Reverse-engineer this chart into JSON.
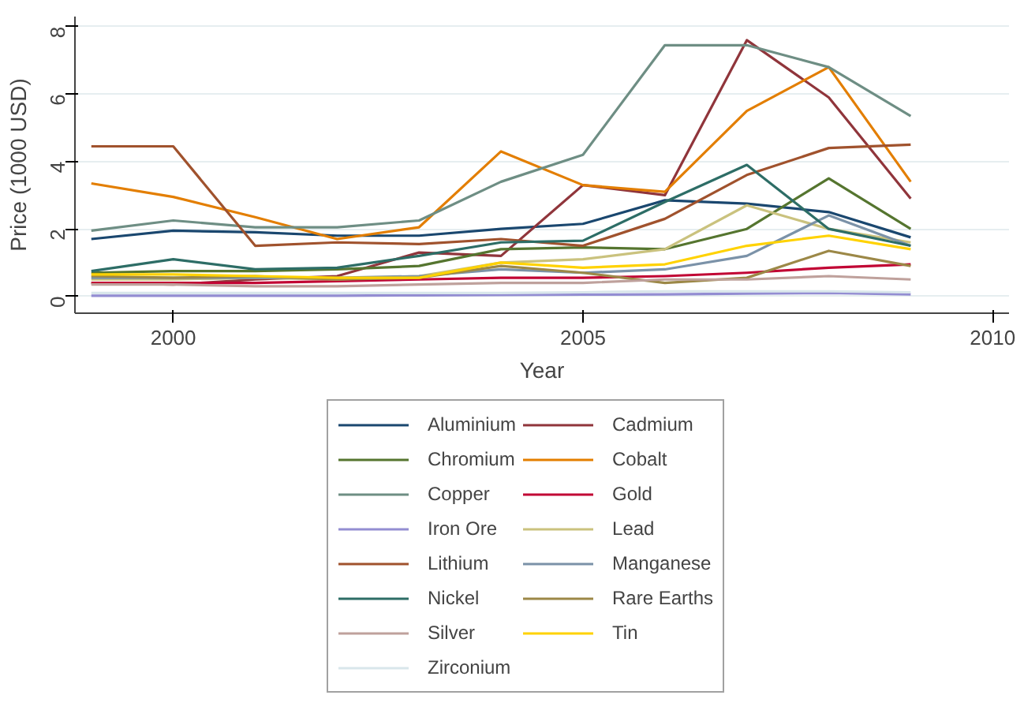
{
  "chart_data": {
    "type": "line",
    "xlabel": "Year",
    "ylabel": "Price (1000 USD)",
    "x": [
      1999,
      2000,
      2001,
      2002,
      2003,
      2004,
      2005,
      2006,
      2007,
      2008,
      2009
    ],
    "xlim": [
      1998.8,
      2010.2
    ],
    "xticks": [
      2000,
      2005,
      2010
    ],
    "ylim": [
      -0.5,
      8.3
    ],
    "yticks": [
      0,
      2,
      4,
      6,
      8
    ],
    "grid": "y",
    "legend": "bottom",
    "line_style": "solid",
    "marker": "none",
    "series": [
      {
        "name": "Aluminium",
        "color": "#1a476f",
        "values": [
          1.7,
          1.95,
          1.9,
          1.8,
          1.8,
          2.0,
          2.15,
          2.85,
          2.75,
          2.5,
          1.75
        ]
      },
      {
        "name": "Cadmium",
        "color": "#90353b",
        "values": [
          0.4,
          0.35,
          0.5,
          0.6,
          1.3,
          1.2,
          3.3,
          3.0,
          7.6,
          5.9,
          2.9
        ]
      },
      {
        "name": "Chromium",
        "color": "#55752f",
        "values": [
          0.7,
          0.75,
          0.75,
          0.8,
          0.9,
          1.4,
          1.45,
          1.4,
          2.0,
          3.5,
          2.0
        ]
      },
      {
        "name": "Cobalt",
        "color": "#e37e00",
        "values": [
          3.35,
          2.95,
          2.35,
          1.7,
          2.05,
          4.3,
          3.3,
          3.1,
          5.5,
          6.8,
          3.4
        ]
      },
      {
        "name": "Copper",
        "color": "#6e8e84",
        "values": [
          1.95,
          2.25,
          2.05,
          2.05,
          2.25,
          3.4,
          4.2,
          7.45,
          7.45,
          6.8,
          5.35
        ]
      },
      {
        "name": "Gold",
        "color": "#c10534",
        "values": [
          0.4,
          0.4,
          0.4,
          0.45,
          0.5,
          0.55,
          0.55,
          0.6,
          0.7,
          0.85,
          0.95
        ]
      },
      {
        "name": "Iron Ore",
        "color": "#938dd2",
        "values": [
          0.02,
          0.02,
          0.02,
          0.02,
          0.03,
          0.04,
          0.05,
          0.06,
          0.08,
          0.1,
          0.06
        ]
      },
      {
        "name": "Lead",
        "color": "#cac27e",
        "values": [
          0.5,
          0.5,
          0.55,
          0.5,
          0.6,
          1.0,
          1.1,
          1.4,
          2.7,
          2.0,
          1.6
        ]
      },
      {
        "name": "Lithium",
        "color": "#a0522d",
        "values": [
          4.45,
          4.45,
          1.5,
          1.6,
          1.55,
          1.7,
          1.5,
          2.3,
          3.6,
          4.4,
          4.5
        ]
      },
      {
        "name": "Manganese",
        "color": "#7b92a8",
        "values": [
          0.55,
          0.55,
          0.55,
          0.55,
          0.6,
          0.8,
          0.7,
          0.8,
          1.2,
          2.4,
          1.5
        ]
      },
      {
        "name": "Nickel",
        "color": "#2d6d66",
        "values": [
          0.75,
          1.1,
          0.8,
          0.85,
          1.2,
          1.6,
          1.65,
          2.8,
          3.9,
          2.0,
          1.5
        ]
      },
      {
        "name": "Rare Earths",
        "color": "#9c8847",
        "values": [
          0.6,
          0.55,
          0.6,
          0.5,
          0.55,
          0.9,
          0.7,
          0.4,
          0.55,
          1.35,
          0.9
        ]
      },
      {
        "name": "Silver",
        "color": "#bfa19c",
        "values": [
          0.35,
          0.35,
          0.3,
          0.3,
          0.35,
          0.4,
          0.4,
          0.5,
          0.5,
          0.6,
          0.5
        ]
      },
      {
        "name": "Tin",
        "color": "#ffd200",
        "values": [
          0.65,
          0.65,
          0.6,
          0.55,
          0.55,
          1.0,
          0.85,
          0.95,
          1.5,
          1.8,
          1.4
        ]
      },
      {
        "name": "Zirconium",
        "color": "#d9e6eb",
        "values": [
          0.1,
          0.1,
          0.1,
          0.1,
          0.1,
          0.1,
          0.12,
          0.15,
          0.15,
          0.15,
          0.12
        ]
      }
    ]
  }
}
